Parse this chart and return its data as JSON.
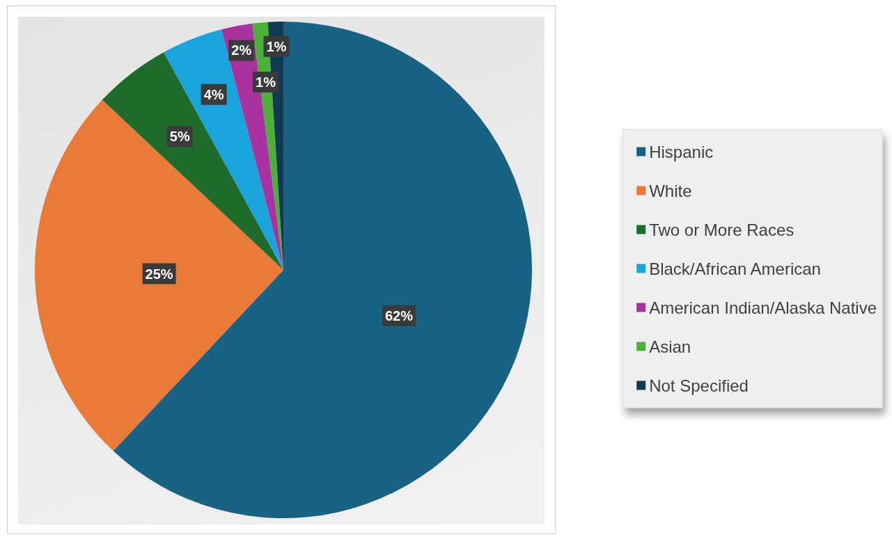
{
  "chart_data": {
    "type": "pie",
    "categories": [
      "Hispanic",
      "White",
      "Two or More Races",
      "Black/African American",
      "American Indian/Alaska Native",
      "Asian",
      "Not Specified"
    ],
    "values": [
      62,
      25,
      5,
      4,
      2,
      1,
      1
    ],
    "value_labels": [
      "62%",
      "25%",
      "5%",
      "4%",
      "2%",
      "1%",
      "1%"
    ],
    "colors": [
      "#1a6283",
      "#ea7a37",
      "#1f6b2c",
      "#1ba3dc",
      "#a8329f",
      "#4caf3a",
      "#123a52"
    ],
    "legend": "right"
  }
}
